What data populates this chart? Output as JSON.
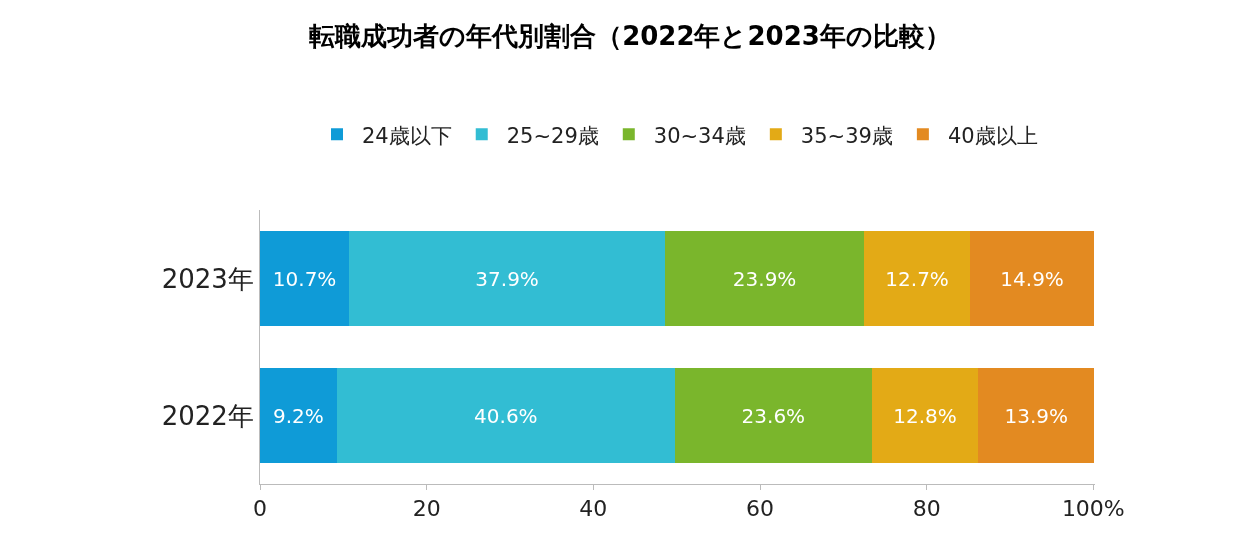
{
  "chart_data": {
    "type": "bar",
    "orientation": "horizontal",
    "stacked": true,
    "title": "転職成功者の年代別割合（2022年と2023年の比較）",
    "categories": [
      "2023年",
      "2022年"
    ],
    "series": [
      {
        "name": "24歳以下",
        "color": "#0f9bd7",
        "values": [
          10.7,
          9.2
        ],
        "value_labels": [
          "10.7%",
          "9.2%"
        ]
      },
      {
        "name": "25~29歳",
        "color": "#32bdd3",
        "values": [
          37.9,
          40.6
        ],
        "value_labels": [
          "37.9%",
          "40.6%"
        ]
      },
      {
        "name": "30~34歳",
        "color": "#7ab62c",
        "values": [
          23.9,
          23.6
        ],
        "value_labels": [
          "23.9%",
          "23.6%"
        ]
      },
      {
        "name": "35~39歳",
        "color": "#e3aa16",
        "values": [
          12.7,
          12.8
        ],
        "value_labels": [
          "12.7%",
          "12.8%"
        ]
      },
      {
        "name": "40歳以上",
        "color": "#e38a21",
        "values": [
          14.9,
          13.9
        ],
        "value_labels": [
          "14.9%",
          "13.9%"
        ]
      }
    ],
    "xlim": [
      0,
      100.2
    ],
    "xticks": [
      0,
      20,
      40,
      60,
      80,
      {
        "value": 100,
        "label": "100%"
      }
    ],
    "legend": "top"
  }
}
